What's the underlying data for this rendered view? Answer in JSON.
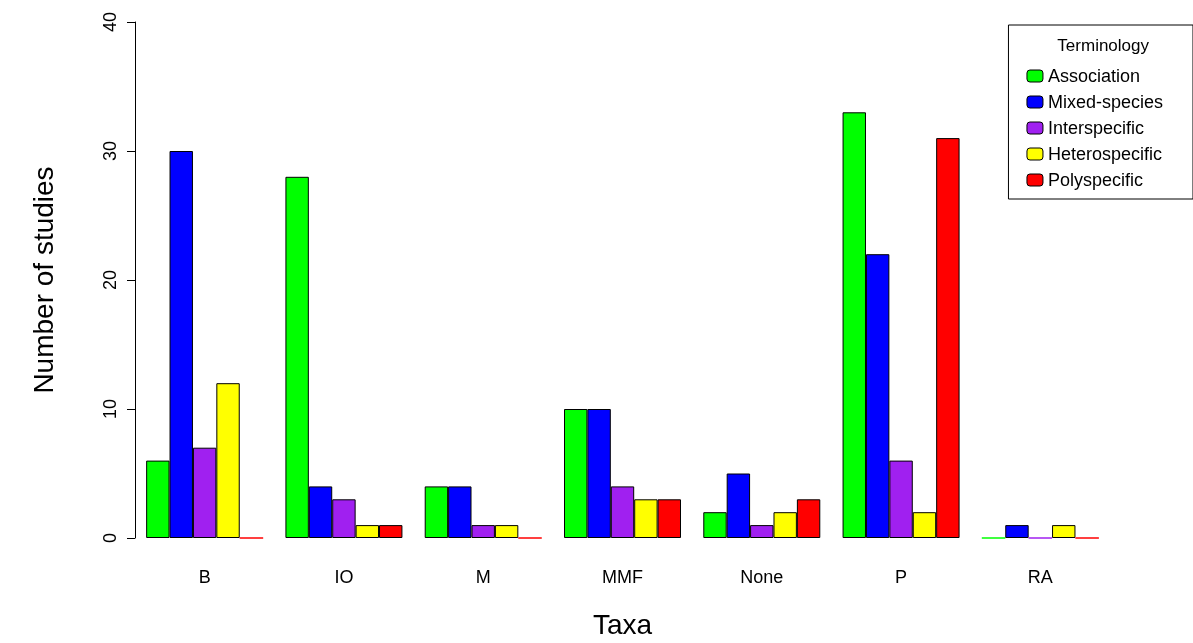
{
  "chart_data": {
    "type": "bar",
    "xlabel": "Taxa",
    "ylabel": "Number of studies",
    "legend_title": "Terminology",
    "legend": "top right",
    "grid": false,
    "categories": [
      "B",
      "IO",
      "M",
      "MMF",
      "None",
      "P",
      "RA"
    ],
    "ylim": [
      0,
      40
    ],
    "yticks": [
      0,
      10,
      20,
      30,
      40
    ],
    "series": [
      {
        "name": "Association",
        "color": "#00ff00",
        "values": [
          6,
          28,
          4,
          10,
          2,
          33,
          0
        ]
      },
      {
        "name": "Mixed-species",
        "color": "#0000ff",
        "values": [
          30,
          4,
          4,
          10,
          5,
          22,
          1
        ]
      },
      {
        "name": "Interspecific",
        "color": "#a020f0",
        "values": [
          7,
          3,
          1,
          4,
          1,
          6,
          0
        ]
      },
      {
        "name": "Heterospecific",
        "color": "#ffff00",
        "values": [
          12,
          1,
          1,
          3,
          2,
          2,
          1
        ]
      },
      {
        "name": "Polyspecific",
        "color": "#ff0000",
        "values": [
          0,
          1,
          0,
          3,
          3,
          31,
          0
        ]
      }
    ]
  }
}
